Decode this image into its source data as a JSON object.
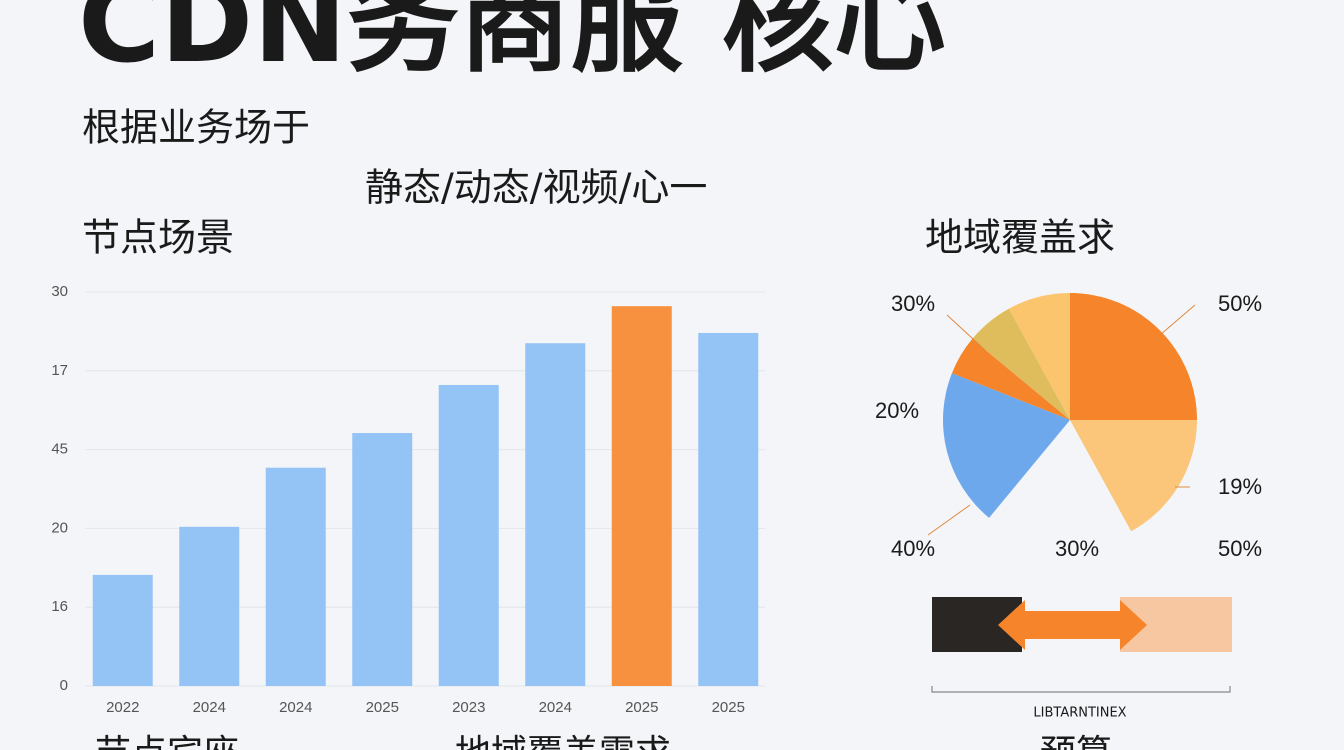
{
  "title": "CDN务商服 核心",
  "subtitle": "根据业务场于",
  "subtitle2": "静态/动态/视频/心一",
  "bottom_headings": [
    "节点宾座",
    "地域覆盖需求",
    "预算"
  ],
  "chart_data": [
    {
      "type": "bar",
      "title": "节点场景",
      "categories": [
        "2022",
        "2024",
        "2024",
        "2025",
        "2023",
        "2024",
        "2025",
        "2025"
      ],
      "values": [
        1.41,
        2.02,
        2.77,
        3.21,
        3.82,
        4.35,
        4.82,
        4.48
      ],
      "colors": [
        "#94c4f6",
        "#94c4f6",
        "#94c4f6",
        "#94c4f6",
        "#94c4f6",
        "#94c4f6",
        "#f7913f",
        "#94c4f6"
      ],
      "ylim": [
        0,
        5
      ],
      "y_axis_labels": [
        "0",
        "16",
        "20",
        "45",
        "17",
        "30"
      ],
      "grid": true
    },
    {
      "type": "pie",
      "title": "地域覆盖求",
      "slices_clockwise": [
        {
          "value": 25,
          "color": "#f5842a"
        },
        {
          "value": 17,
          "color": "#fbc57a"
        }
      ],
      "slices_counterclockwise": [
        {
          "value": 8,
          "color": "#fbc56e"
        },
        {
          "value": 6,
          "color": "#e0bd5c"
        },
        {
          "value": 5,
          "color": "#f5842a"
        },
        {
          "value": 20,
          "color": "#6ea8ec"
        }
      ],
      "labels": [
        "30%",
        "50%",
        "20%",
        "19%",
        "40%",
        "30%",
        "50%"
      ],
      "legend_label": "LIBTARNTINEX"
    }
  ]
}
